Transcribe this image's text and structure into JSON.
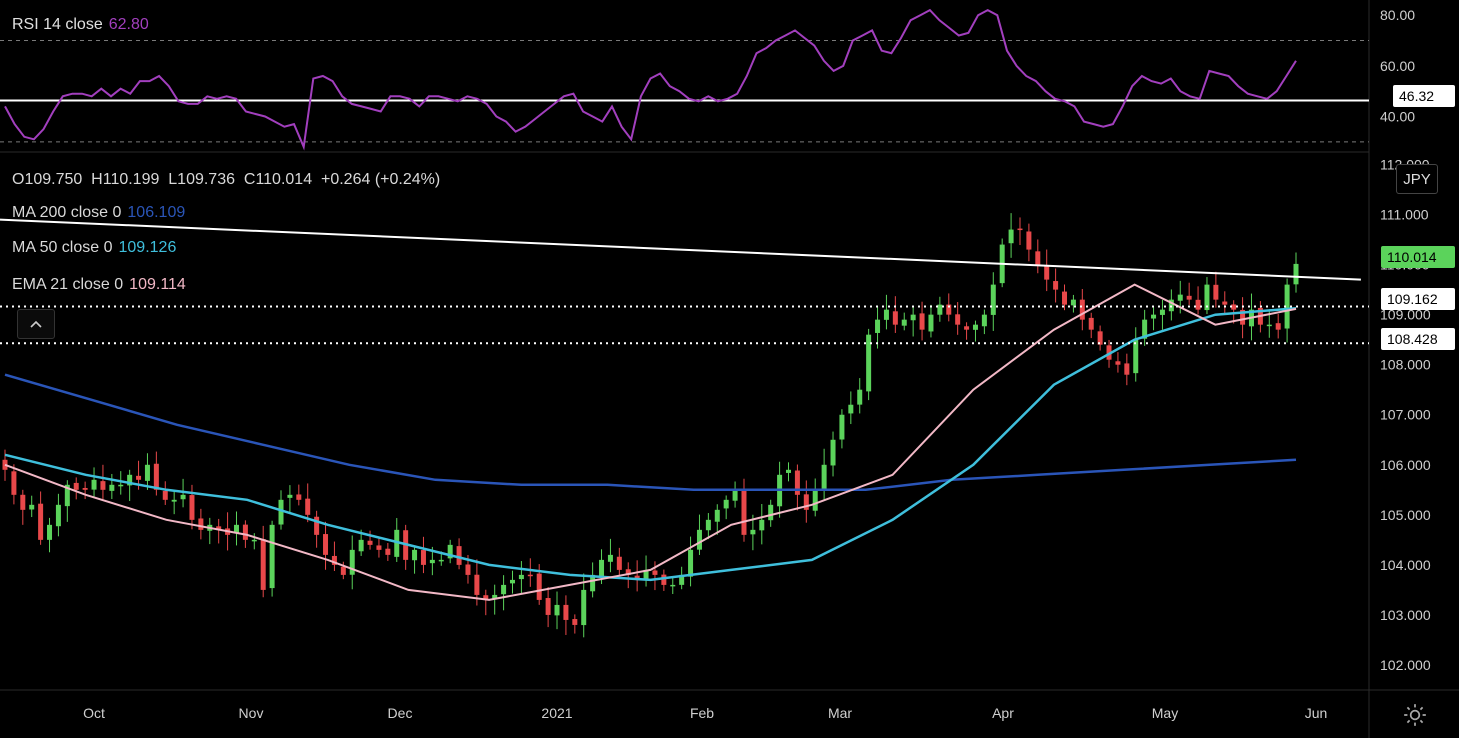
{
  "rsi_legend": {
    "label": "RSI 14 close",
    "value": "62.80"
  },
  "ohlc": {
    "text": "O109.750  H110.199  L109.736  C110.014  +0.264 (+0.24%)"
  },
  "legends": [
    {
      "label": "MA 200 close 0",
      "value": "106.109",
      "color": "#2a55b8"
    },
    {
      "label": "MA 50 close 0",
      "value": "109.126",
      "color": "#3fbfdc"
    },
    {
      "label": "EMA 21 close 0",
      "value": "109.114",
      "color": "#f2b8c6"
    }
  ],
  "currency": "JPY",
  "price_tags": {
    "last": "110.014",
    "level1": "109.162",
    "level2": "108.428",
    "rsi_level": "46.32"
  },
  "colors": {
    "up": "#5bd35b",
    "down": "#e8484a",
    "ma200": "#2a55b8",
    "ma50": "#3fbfdc",
    "ema21": "#f2b8c6",
    "rsi": "#a23fbe"
  },
  "chart_data": [
    {
      "type": "line",
      "name": "RSI",
      "ylim": [
        26,
        86
      ],
      "y_ticks": [
        "80.00",
        "60.00",
        "40.00"
      ],
      "levels": [
        70,
        30,
        46.32
      ],
      "series": [
        {
          "values": [
            44,
            37,
            32,
            31,
            35,
            42,
            48,
            49,
            49,
            48,
            51,
            48,
            51,
            49,
            54,
            54,
            56,
            52,
            46,
            45,
            45,
            48,
            47,
            48,
            47,
            42,
            41,
            40,
            38,
            36,
            37,
            28,
            55,
            56,
            54,
            48,
            45,
            44,
            43,
            42,
            48,
            48,
            47,
            44,
            48,
            48,
            47,
            46,
            48,
            47,
            45,
            40,
            38,
            34,
            36,
            39,
            42,
            45,
            48,
            49,
            42,
            40,
            38,
            44,
            36,
            31,
            48,
            55,
            57,
            52,
            50,
            47,
            46,
            48,
            46,
            47,
            49,
            56,
            65,
            67,
            70,
            72,
            74,
            71,
            68,
            62,
            58,
            60,
            70,
            72,
            74,
            66,
            65,
            71,
            78,
            80,
            82,
            78,
            75,
            72,
            73,
            80,
            82,
            80,
            66,
            60,
            56,
            54,
            50,
            47,
            46,
            44,
            38,
            37,
            36,
            37,
            44,
            52,
            56,
            54,
            53,
            55,
            50,
            48,
            47,
            58,
            57,
            56,
            52,
            49,
            48,
            47,
            50,
            56,
            62
          ]
        }
      ]
    },
    {
      "type": "candlestick",
      "name": "USDJPY",
      "ylim": [
        101.5,
        112.25
      ],
      "y_ticks": [
        "112.000",
        "111.000",
        "110.000",
        "109.000",
        "108.000",
        "107.000",
        "106.000",
        "105.000",
        "104.000",
        "103.000",
        "102.000"
      ],
      "x_labels": [
        "Oct",
        "Nov",
        "Dec",
        "2021",
        "Feb",
        "Mar",
        "Apr",
        "May",
        "Jun"
      ],
      "closes": [
        105.9,
        105.4,
        105.1,
        105.2,
        104.5,
        104.8,
        105.2,
        105.6,
        105.5,
        105.5,
        105.7,
        105.5,
        105.6,
        105.6,
        105.8,
        105.7,
        106.0,
        105.5,
        105.3,
        105.3,
        105.4,
        104.9,
        104.7,
        104.8,
        104.7,
        104.6,
        104.8,
        104.5,
        104.5,
        103.5,
        104.8,
        105.3,
        105.4,
        105.3,
        105.0,
        104.6,
        104.2,
        104.0,
        103.8,
        104.3,
        104.5,
        104.4,
        104.3,
        104.2,
        104.7,
        104.1,
        104.3,
        104.0,
        104.1,
        104.1,
        104.4,
        104.0,
        103.8,
        103.4,
        103.3,
        103.4,
        103.6,
        103.7,
        103.8,
        103.8,
        103.3,
        103.0,
        103.2,
        102.9,
        102.8,
        103.5,
        103.8,
        104.1,
        104.2,
        103.9,
        103.8,
        103.7,
        103.9,
        103.8,
        103.6,
        103.6,
        103.8,
        104.3,
        104.7,
        104.9,
        105.1,
        105.3,
        105.5,
        104.6,
        104.7,
        104.9,
        105.2,
        105.8,
        105.9,
        105.4,
        105.1,
        105.5,
        106.0,
        106.5,
        107.0,
        107.2,
        107.5,
        108.6,
        108.9,
        109.1,
        108.8,
        108.9,
        109.0,
        108.7,
        109.0,
        109.2,
        109.0,
        108.8,
        108.7,
        108.8,
        109.0,
        109.6,
        110.4,
        110.7,
        110.7,
        110.3,
        110.0,
        109.7,
        109.5,
        109.2,
        109.3,
        108.9,
        108.7,
        108.4,
        108.1,
        108.0,
        107.8,
        108.5,
        108.9,
        109.0,
        109.1,
        109.3,
        109.4,
        109.3,
        109.1,
        109.6,
        109.3,
        109.2,
        109.1,
        108.8,
        109.1,
        108.8,
        108.8,
        108.7,
        109.6,
        110.014
      ],
      "ma200": [
        107.8,
        107.3,
        106.8,
        106.4,
        106.0,
        105.7,
        105.6,
        105.6,
        105.5,
        105.5,
        105.5,
        105.7,
        105.8,
        105.9,
        106.0,
        106.1
      ],
      "ma50": [
        106.2,
        105.8,
        105.5,
        105.3,
        104.8,
        104.4,
        104.0,
        103.8,
        103.7,
        103.9,
        104.1,
        104.9,
        106.0,
        107.6,
        108.5,
        109.0,
        109.126
      ],
      "ema21": [
        106.0,
        105.4,
        104.9,
        104.6,
        104.1,
        103.5,
        103.3,
        103.6,
        103.9,
        104.8,
        105.2,
        105.8,
        107.5,
        108.7,
        109.6,
        108.8,
        109.114
      ],
      "trendline": [
        [
          0,
          110.9
        ],
        [
          146,
          109.7
        ]
      ],
      "horizontal_levels": [
        109.162,
        108.428
      ]
    }
  ]
}
